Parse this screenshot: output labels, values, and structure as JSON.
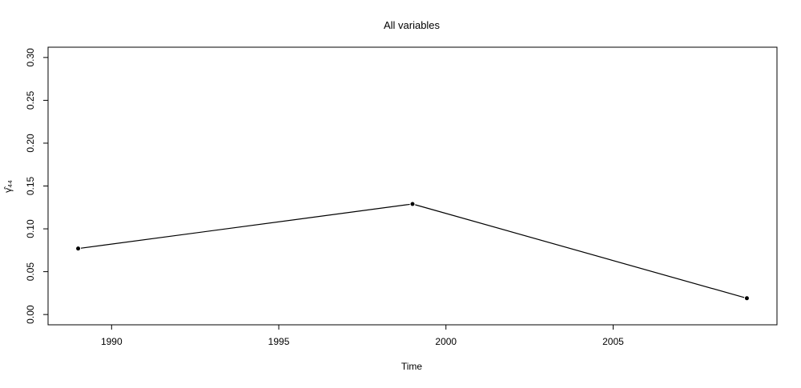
{
  "chart_data": {
    "type": "line",
    "title": "All variables",
    "xlabel": "Time",
    "ylabel": "γ̂₄₄",
    "x": [
      1989,
      1999,
      2009
    ],
    "series": [
      {
        "values": [
          0.077,
          0.129,
          0.019
        ]
      }
    ],
    "xlim": [
      1988.1,
      2009.9
    ],
    "ylim": [
      -0.012,
      0.312
    ],
    "x_ticks": [
      1990,
      1995,
      2000,
      2005
    ],
    "y_ticks": [
      0.0,
      0.05,
      0.1,
      0.15,
      0.2,
      0.25,
      0.3
    ],
    "x_tick_labels": [
      "1990",
      "1995",
      "2000",
      "2005"
    ],
    "y_tick_labels": [
      "0.00",
      "0.05",
      "0.10",
      "0.15",
      "0.20",
      "0.25",
      "0.30"
    ],
    "grid": false,
    "legend": "none",
    "markers": "filled-circle",
    "line_color": "#000000",
    "marker_color": "#000000"
  }
}
